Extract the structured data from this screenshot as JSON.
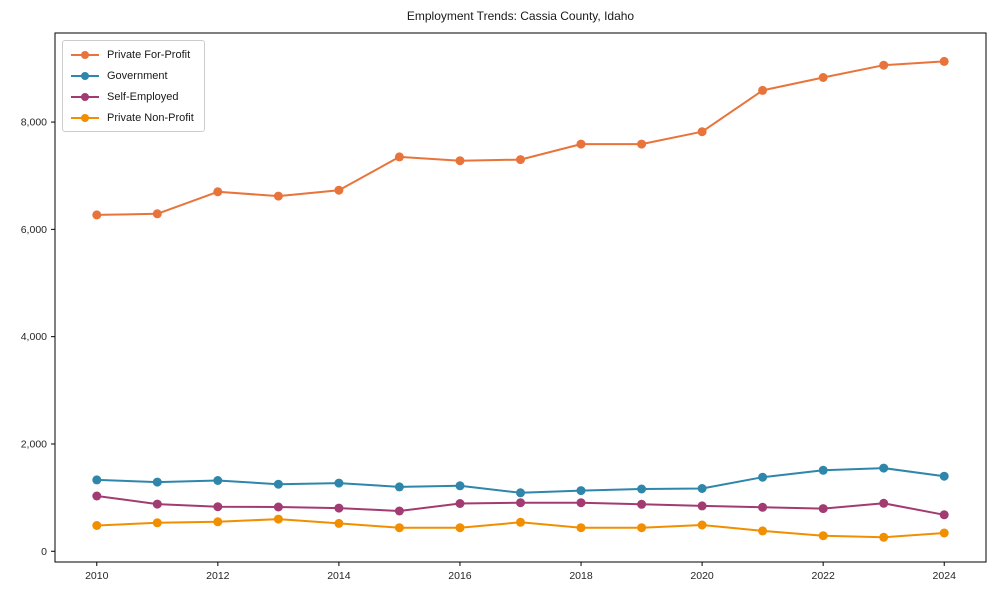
{
  "title": "Employment Trends: Cassia County, Idaho",
  "axes": {
    "x_tick_labels": [
      "2010",
      "2012",
      "2014",
      "2016",
      "2018",
      "2020",
      "2022",
      "2024"
    ],
    "y_tick_labels": [
      "0",
      "2,000",
      "4,000",
      "6,000",
      "8,000"
    ]
  },
  "legend": {
    "items": [
      {
        "label": "Private For-Profit",
        "color": "#E8743B"
      },
      {
        "label": "Government",
        "color": "#2E86AB"
      },
      {
        "label": "Self-Employed",
        "color": "#A23B72"
      },
      {
        "label": "Private Non-Profit",
        "color": "#F18F01"
      }
    ]
  },
  "chart_data": {
    "type": "line",
    "title": "Employment Trends: Cassia County, Idaho",
    "xlabel": "",
    "ylabel": "",
    "x": [
      2010,
      2011,
      2012,
      2013,
      2014,
      2015,
      2016,
      2017,
      2018,
      2019,
      2020,
      2021,
      2022,
      2023,
      2024
    ],
    "x_tick_values": [
      2010,
      2012,
      2014,
      2016,
      2018,
      2020,
      2022,
      2024
    ],
    "y_tick_values": [
      0,
      2000,
      4000,
      6000,
      8000
    ],
    "xlim": [
      2009.31,
      2024.69
    ],
    "ylim": [
      -200,
      9660
    ],
    "grid": false,
    "legend_position": "upper-left",
    "series": [
      {
        "name": "Private For-Profit",
        "color": "#E8743B",
        "values": [
          6270,
          6290,
          6700,
          6620,
          6730,
          7350,
          7280,
          7300,
          7590,
          7590,
          7820,
          8590,
          8830,
          9060,
          9130
        ]
      },
      {
        "name": "Government",
        "color": "#2E86AB",
        "values": [
          1330,
          1290,
          1320,
          1250,
          1270,
          1200,
          1220,
          1090,
          1130,
          1160,
          1170,
          1380,
          1510,
          1550,
          1400
        ]
      },
      {
        "name": "Self-Employed",
        "color": "#A23B72",
        "values": [
          1030,
          880,
          830,
          825,
          805,
          750,
          890,
          905,
          905,
          875,
          845,
          820,
          795,
          895,
          680
        ]
      },
      {
        "name": "Private Non-Profit",
        "color": "#F18F01",
        "values": [
          480,
          530,
          550,
          600,
          520,
          440,
          440,
          540,
          440,
          440,
          490,
          380,
          290,
          260,
          340
        ]
      }
    ]
  }
}
